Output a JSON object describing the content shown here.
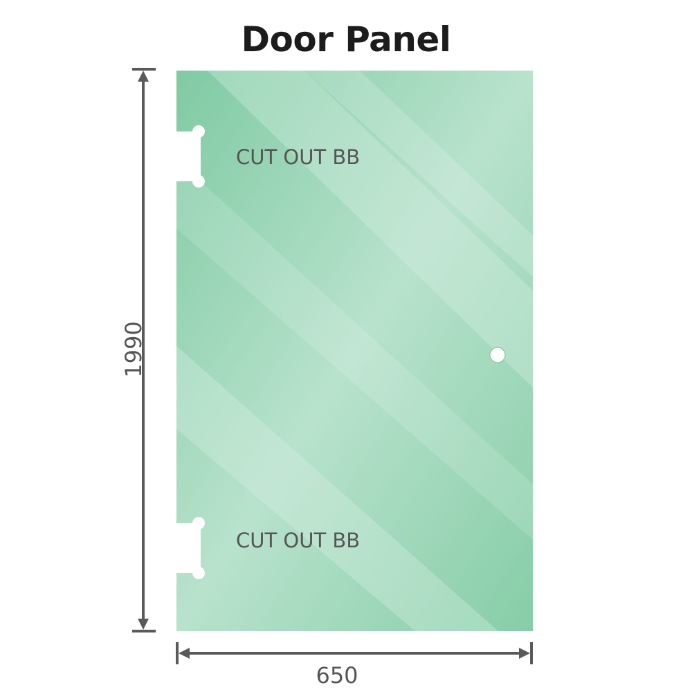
{
  "title": "Door Panel",
  "panel": {
    "height_label": "1990",
    "width_label": "650",
    "cutouts": [
      {
        "label": "CUT OUT BB"
      },
      {
        "label": "CUT OUT BB"
      }
    ],
    "glass_color": "#8ed1ac",
    "glass_highlight_color": "#c2e6d3"
  },
  "dimension_line_color": "#5a5a5a"
}
